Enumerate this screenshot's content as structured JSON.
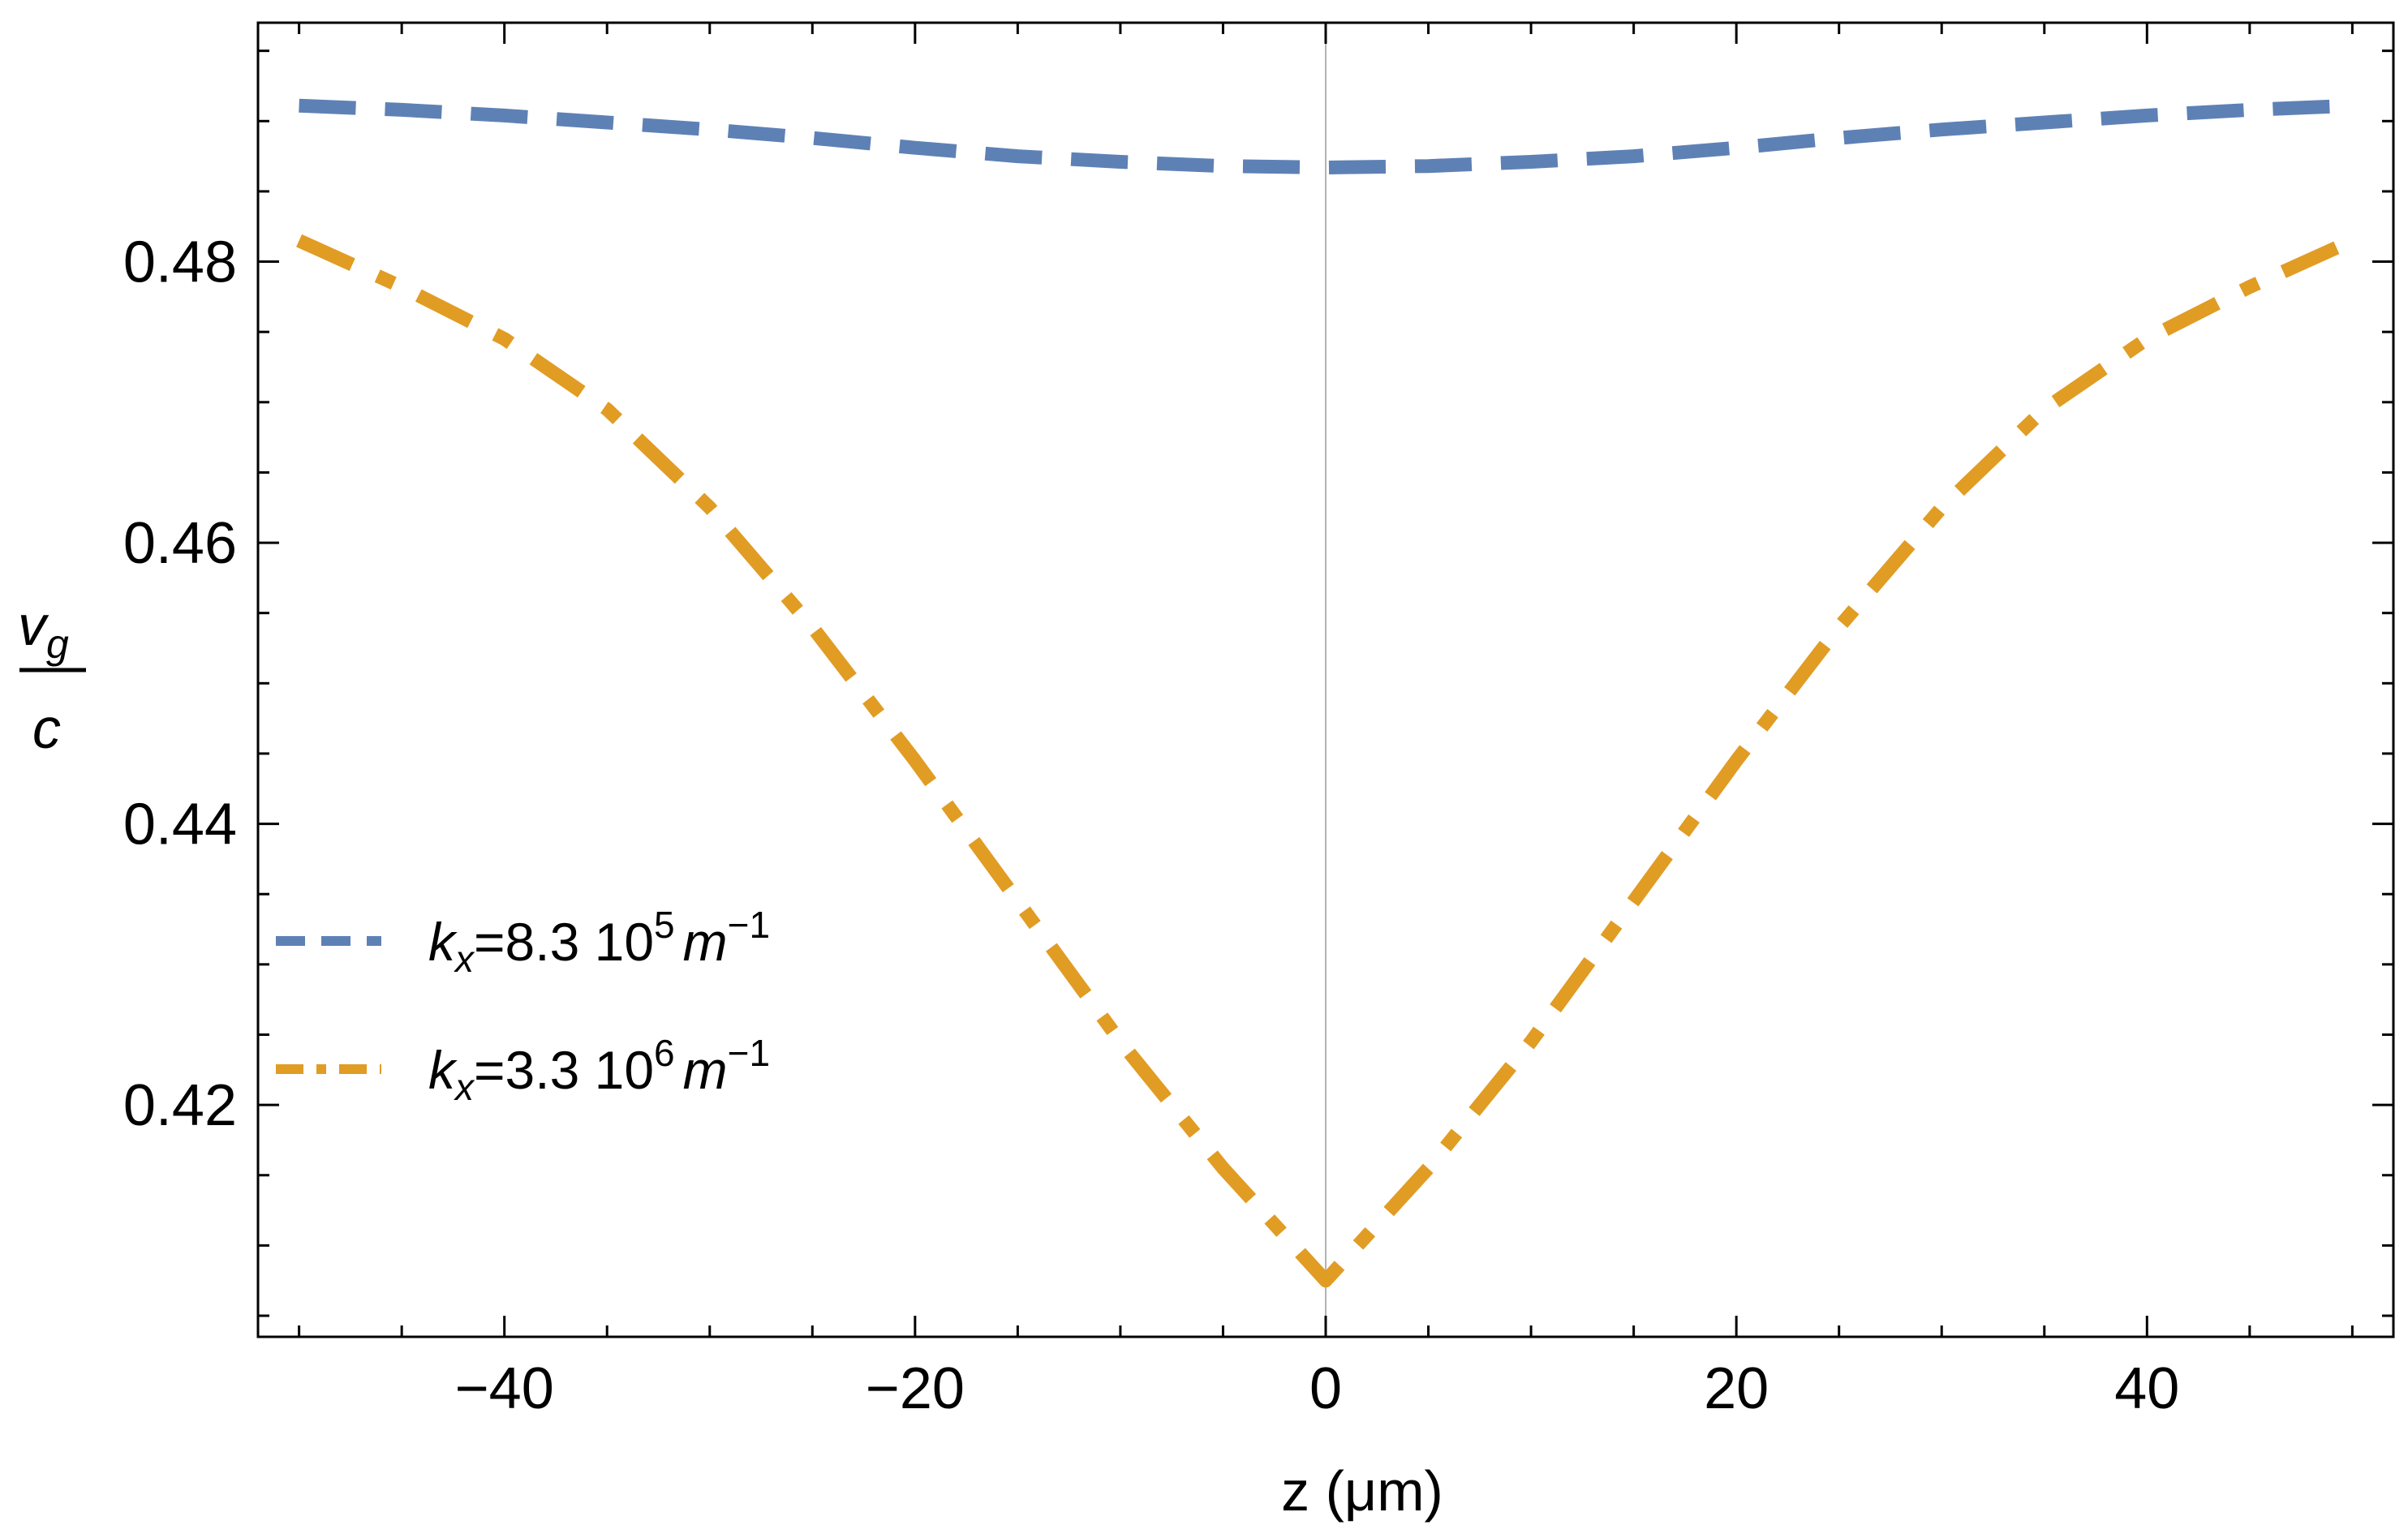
{
  "chart_data": {
    "type": "line",
    "title": "",
    "xlabel": "z (μm)",
    "ylabel": {
      "numerator": "v",
      "numerator_sub": "g",
      "denominator": "c"
    },
    "xlim": [
      -52,
      52
    ],
    "ylim": [
      0.4035,
      0.497
    ],
    "x_ticks": [
      -40,
      -20,
      0,
      20,
      40
    ],
    "x_tick_labels": [
      "−40",
      "−20",
      "0",
      "20",
      "40"
    ],
    "y_ticks": [
      0.42,
      0.44,
      0.46,
      0.48
    ],
    "y_tick_labels": [
      "0.42",
      "0.44",
      "0.46",
      "0.48"
    ],
    "vertical_reference_line_at_x": 0,
    "legend_position": "center-left",
    "series": [
      {
        "name": "kx=8.3 10^5 m^-1",
        "legend": {
          "k": "k",
          "k_sub": "x",
          "mid": "=8.3 10",
          "exp": "5",
          "unit": "m",
          "unit_exp": "−1"
        },
        "style": "dashed",
        "color": "#5E81B5",
        "x": [
          -50,
          -45,
          -40,
          -35,
          -30,
          -25,
          -20,
          -15,
          -10,
          -5,
          0,
          5,
          10,
          15,
          20,
          25,
          30,
          35,
          40,
          45,
          50
        ],
        "values": [
          0.4911,
          0.4908,
          0.4904,
          0.4899,
          0.4894,
          0.4888,
          0.4881,
          0.4875,
          0.4871,
          0.4868,
          0.4867,
          0.4868,
          0.4871,
          0.4875,
          0.4881,
          0.4888,
          0.4894,
          0.4899,
          0.4904,
          0.4908,
          0.4911
        ]
      },
      {
        "name": "kx=3.3 10^6 m^-1",
        "legend": {
          "k": "k",
          "k_sub": "x",
          "mid": "=3.3 10",
          "exp": "6",
          "unit": "m",
          "unit_exp": "−1"
        },
        "style": "dashdot",
        "color": "#E19C24",
        "x": [
          -50,
          -45,
          -40,
          -35,
          -30,
          -25,
          -20,
          -15,
          -10,
          -5,
          0,
          5,
          10,
          15,
          20,
          25,
          30,
          35,
          40,
          45,
          50
        ],
        "values": [
          0.4815,
          0.4782,
          0.4745,
          0.4695,
          0.4625,
          0.454,
          0.4445,
          0.4345,
          0.4245,
          0.4155,
          0.4075,
          0.4155,
          0.4245,
          0.4345,
          0.4445,
          0.454,
          0.4625,
          0.4695,
          0.4745,
          0.4782,
          0.4815
        ]
      }
    ]
  }
}
